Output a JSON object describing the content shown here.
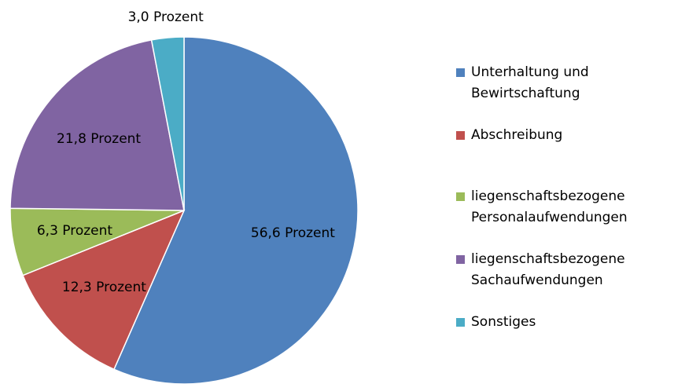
{
  "chart_data": {
    "type": "pie",
    "categories": [
      "Unterhaltung und Bewirtschaftung",
      "Abschreibung",
      "liegenschaftsbezogene Personalaufwendungen",
      "liegenschaftsbezogene Sachaufwendungen",
      "Sonstiges"
    ],
    "values": [
      56.6,
      12.3,
      6.3,
      21.8,
      3.0
    ],
    "value_labels": [
      "56,6 Prozent",
      "12,3 Prozent",
      "6,3 Prozent",
      "21,8 Prozent",
      "3,0 Prozent"
    ],
    "colors": [
      "#4f81bd",
      "#c0504d",
      "#9bbb59",
      "#8064a2",
      "#4bacc6"
    ],
    "legend": "right"
  }
}
